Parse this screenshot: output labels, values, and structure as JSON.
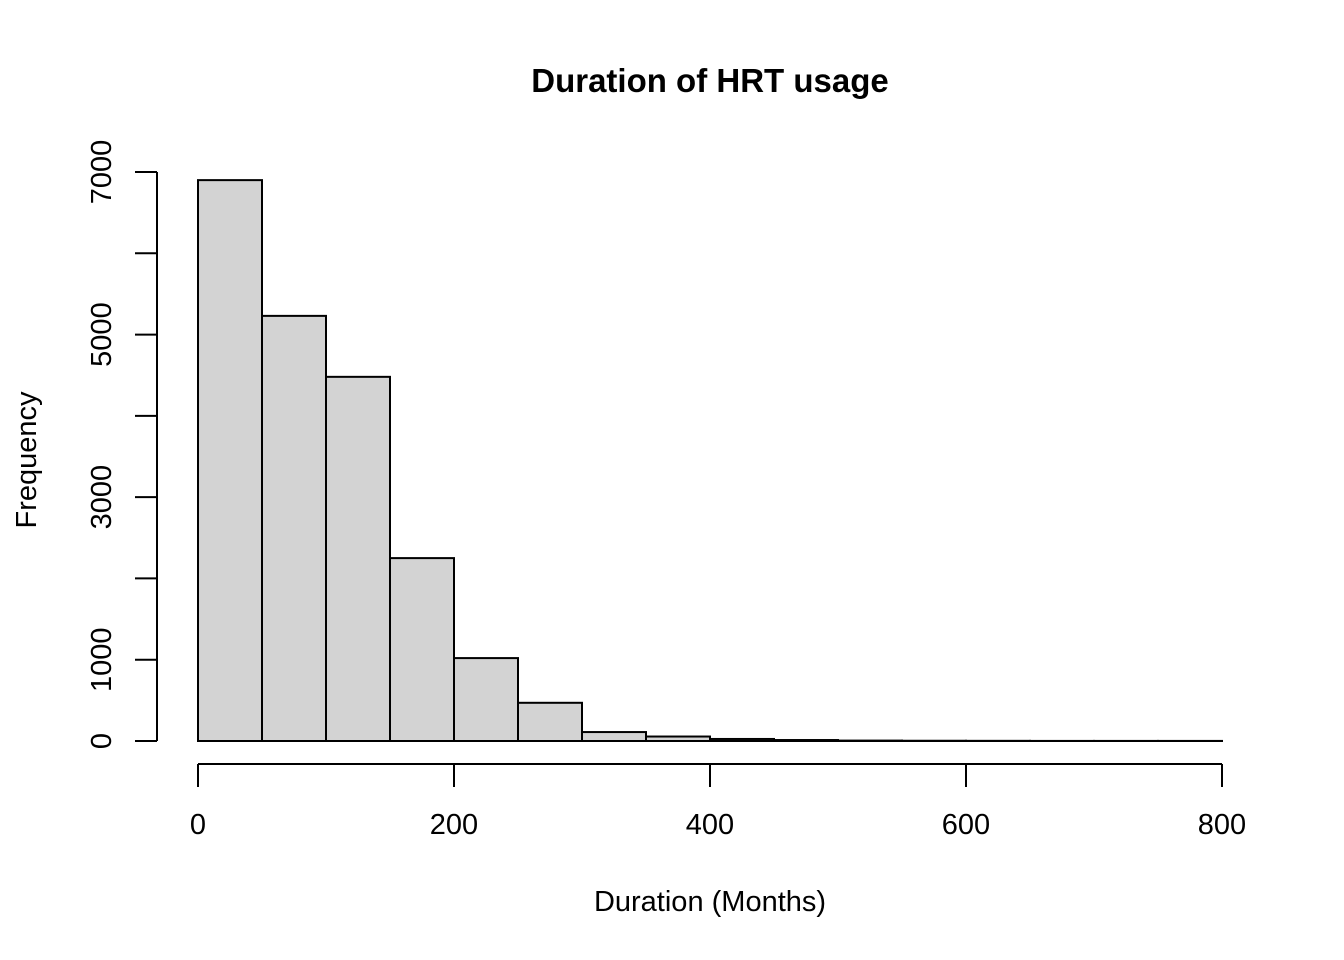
{
  "chart_data": {
    "type": "bar",
    "title": "Duration of HRT usage",
    "xlabel": "Duration (Months)",
    "ylabel": "Frequency",
    "bins": [
      {
        "x0": 0,
        "x1": 50,
        "count": 6900
      },
      {
        "x0": 50,
        "x1": 100,
        "count": 5230
      },
      {
        "x0": 100,
        "x1": 150,
        "count": 4480
      },
      {
        "x0": 150,
        "x1": 200,
        "count": 2250
      },
      {
        "x0": 200,
        "x1": 250,
        "count": 1020
      },
      {
        "x0": 250,
        "x1": 300,
        "count": 470
      },
      {
        "x0": 300,
        "x1": 350,
        "count": 110
      },
      {
        "x0": 350,
        "x1": 400,
        "count": 55
      },
      {
        "x0": 400,
        "x1": 450,
        "count": 25
      },
      {
        "x0": 450,
        "x1": 500,
        "count": 12
      },
      {
        "x0": 500,
        "x1": 550,
        "count": 5
      },
      {
        "x0": 550,
        "x1": 600,
        "count": 3
      },
      {
        "x0": 600,
        "x1": 650,
        "count": 2
      },
      {
        "x0": 650,
        "x1": 700,
        "count": 1
      },
      {
        "x0": 700,
        "x1": 750,
        "count": 1
      },
      {
        "x0": 750,
        "x1": 800,
        "count": 1
      }
    ],
    "xlim": [
      0,
      800
    ],
    "ylim": [
      0,
      7000
    ],
    "x_ticks": [
      "0",
      "200",
      "400",
      "600",
      "800"
    ],
    "y_ticks": [
      "0",
      "1000",
      "3000",
      "5000",
      "7000"
    ],
    "grid": false,
    "bar_color": "#d3d3d3",
    "edge_color": "#000000"
  }
}
